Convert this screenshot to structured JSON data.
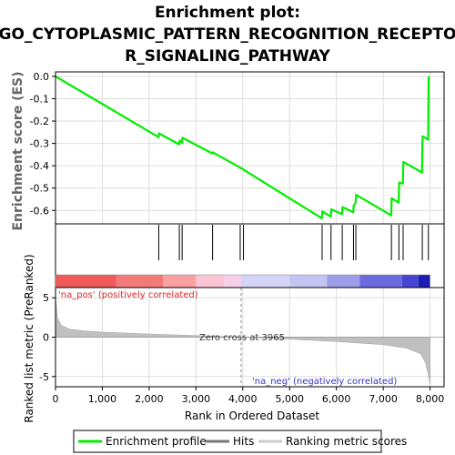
{
  "chart_data": {
    "type": "line",
    "title_lines": [
      "Enrichment plot:",
      "GO_CYTOPLASMIC_PATTERN_RECOGNITION_RECEPTO",
      "R_SIGNALING_PATHWAY"
    ],
    "top_ylabel": "Enrichment score (ES)",
    "bottom_ylabel": "Ranked list metric (PreRanked)",
    "xlabel": "Rank in Ordered Dataset",
    "x_ticks": [
      "0",
      "1,000",
      "2,000",
      "3,000",
      "4,000",
      "5,000",
      "6,000",
      "7,000",
      "8,000"
    ],
    "x_tick_values": [
      0,
      1000,
      2000,
      3000,
      4000,
      5000,
      6000,
      7000,
      8000
    ],
    "xlim": [
      0,
      8300
    ],
    "es_yticks": [
      "0.0",
      "-0.1",
      "-0.2",
      "-0.3",
      "-0.4",
      "-0.5",
      "-0.6"
    ],
    "es_ytick_values": [
      0.0,
      -0.1,
      -0.2,
      -0.3,
      -0.4,
      -0.5,
      -0.6
    ],
    "es_ylim": [
      -0.66,
      0.02
    ],
    "metric_yticks": [
      "5",
      "0",
      "-5"
    ],
    "metric_ytick_values": [
      5,
      0,
      -5
    ],
    "metric_ylim": [
      -6.3,
      6.3
    ],
    "grid": true,
    "enrichment_profile": {
      "name": "Enrichment profile",
      "color": "#00ee00",
      "x": [
        0,
        2200,
        2210,
        2640,
        2650,
        2700,
        2710,
        3350,
        3360,
        3940,
        3950,
        4010,
        4020,
        5690,
        5700,
        5880,
        5890,
        6120,
        6130,
        6360,
        6370,
        6410,
        6420,
        7170,
        7180,
        7330,
        7340,
        7420,
        7430,
        7830,
        7840,
        7960,
        7970
      ],
      "y": [
        0.0,
        -0.272,
        -0.255,
        -0.304,
        -0.288,
        -0.298,
        -0.275,
        -0.345,
        -0.34,
        -0.408,
        -0.41,
        -0.415,
        -0.418,
        -0.635,
        -0.605,
        -0.627,
        -0.595,
        -0.617,
        -0.585,
        -0.608,
        -0.578,
        -0.565,
        -0.53,
        -0.622,
        -0.545,
        -0.565,
        -0.475,
        -0.48,
        -0.383,
        -0.43,
        -0.268,
        -0.283,
        0.0
      ]
    },
    "hits": {
      "name": "Hits",
      "x": [
        2205,
        2645,
        2705,
        3355,
        3945,
        4015,
        5695,
        5885,
        6125,
        6365,
        6415,
        7175,
        7335,
        7425,
        7835,
        7965
      ]
    },
    "ranking_metric": {
      "name": "Ranking metric scores",
      "x": [
        0,
        40,
        120,
        300,
        600,
        1000,
        2000,
        3000,
        3965,
        5000,
        6000,
        7000,
        7500,
        7800,
        7900,
        7960,
        8000
      ],
      "y": [
        5.2,
        2.5,
        1.5,
        1.0,
        0.8,
        0.65,
        0.4,
        0.2,
        0.0,
        -0.25,
        -0.55,
        -0.95,
        -1.4,
        -2.1,
        -3.2,
        -4.6,
        -6.0
      ]
    },
    "heatmap_segments": [
      {
        "from": 0,
        "to": 1300,
        "color": "#f05a5a"
      },
      {
        "from": 1300,
        "to": 2300,
        "color": "#f47a7a"
      },
      {
        "from": 2300,
        "to": 3000,
        "color": "#f9a0a0"
      },
      {
        "from": 3000,
        "to": 3600,
        "color": "#fbc4d4"
      },
      {
        "from": 3600,
        "to": 3965,
        "color": "#f6d0e6"
      },
      {
        "from": 3965,
        "to": 5000,
        "color": "#d4d4f6"
      },
      {
        "from": 5000,
        "to": 5800,
        "color": "#c4c4f2"
      },
      {
        "from": 5800,
        "to": 6500,
        "color": "#9c9ce8"
      },
      {
        "from": 6500,
        "to": 7400,
        "color": "#6b6be0"
      },
      {
        "from": 7400,
        "to": 7750,
        "color": "#4646d2"
      },
      {
        "from": 7750,
        "to": 8000,
        "color": "#1d1db0"
      }
    ],
    "pos_label": "'na_pos' (positively correlated)",
    "neg_label": "'na_neg' (negatively correlated)",
    "zero_cross_label": "Zero cross at 3965",
    "zero_cross": 3965,
    "legend": [
      {
        "name": "Enrichment profile",
        "color": "#00ee00"
      },
      {
        "name": "Hits",
        "color": "#777777"
      },
      {
        "name": "Ranking metric scores",
        "color": "#cccccc"
      }
    ],
    "legend_placement": "bottom"
  }
}
